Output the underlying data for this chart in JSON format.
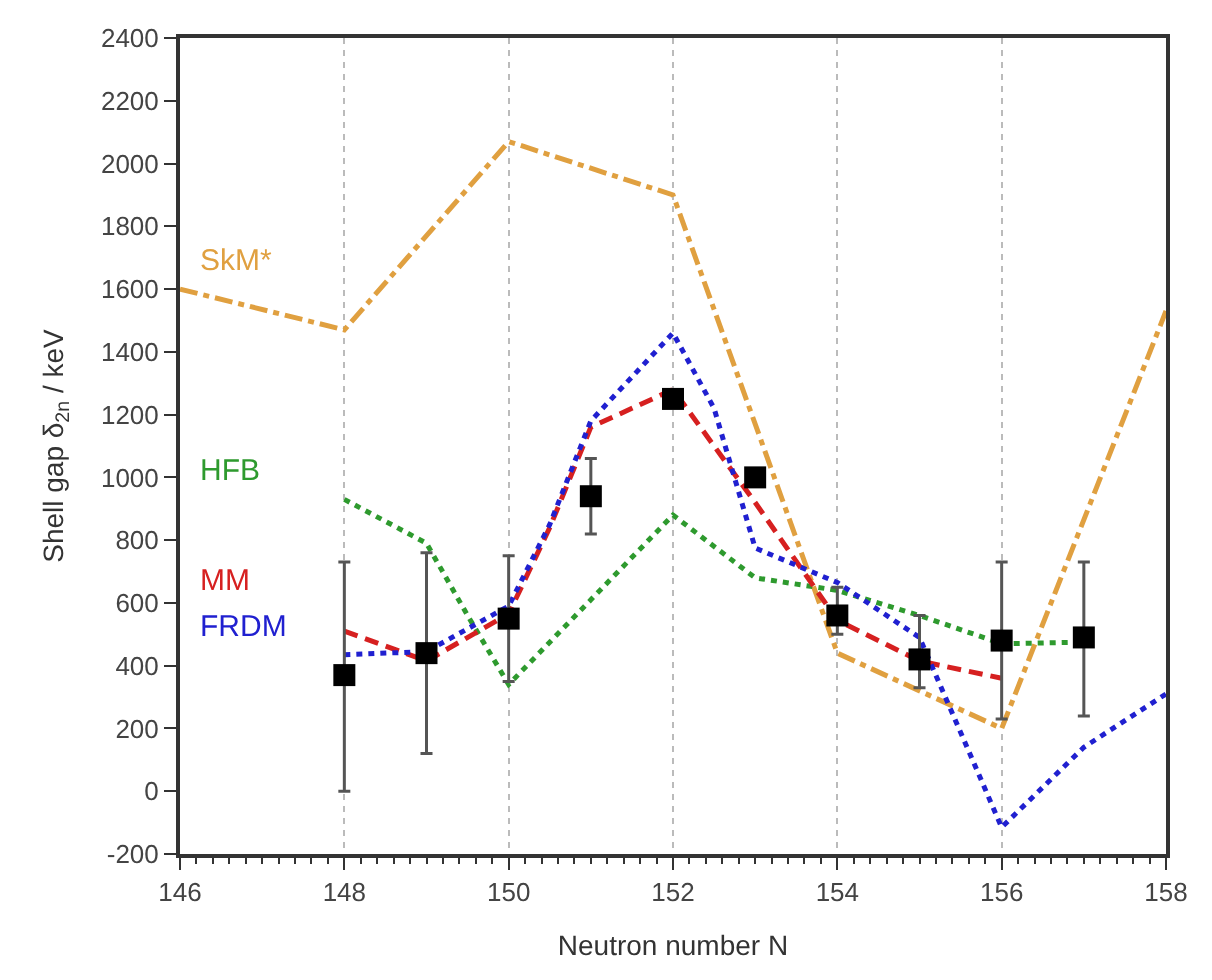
{
  "chart_data": {
    "type": "line",
    "xlabel": "Neutron number N",
    "ylabel": "Shell gap δ$_{2n}$ / keV",
    "xlim": [
      146,
      158
    ],
    "xticks": [
      146,
      148,
      150,
      152,
      154,
      156,
      158
    ],
    "ylim": [
      -200,
      2400
    ],
    "yticks": [
      -200,
      0,
      200,
      400,
      600,
      800,
      1000,
      1200,
      1400,
      1600,
      1800,
      2000,
      2200,
      2400
    ],
    "grid": "x",
    "series": [
      {
        "name": "SkM*",
        "color": "#e0a040",
        "line_style": "dashdot",
        "marker": "none",
        "x": [
          146,
          148,
          150,
          152,
          154,
          156,
          158
        ],
        "values": [
          1600,
          1470,
          2070,
          1900,
          440,
          200,
          1530
        ]
      },
      {
        "name": "HFB",
        "color": "#2e9a2e",
        "line_style": "dotted",
        "marker": "none",
        "x": [
          148,
          149,
          149.5,
          150,
          151,
          152,
          153,
          154,
          155,
          156,
          157
        ],
        "values": [
          930,
          790,
          560,
          340,
          610,
          880,
          680,
          640,
          560,
          470,
          475
        ]
      },
      {
        "name": "MM",
        "color": "#d62020",
        "line_style": "dashed",
        "marker": "none",
        "x": [
          148,
          149,
          150,
          150.5,
          151,
          152,
          153,
          154,
          155,
          156
        ],
        "values": [
          510,
          415,
          565,
          840,
          1160,
          1280,
          920,
          545,
          415,
          360
        ]
      },
      {
        "name": "FRDM",
        "color": "#2020d0",
        "line_style": "dotted",
        "marker": "none",
        "x": [
          148,
          149,
          150,
          150.5,
          151,
          152,
          152.5,
          153,
          154,
          155,
          156,
          157,
          158
        ],
        "values": [
          435,
          445,
          590,
          850,
          1180,
          1460,
          1220,
          775,
          665,
          490,
          -115,
          140,
          310
        ]
      },
      {
        "type": "scatter",
        "color": "#000000",
        "marker": "square",
        "x": [
          148,
          149,
          150,
          151,
          152,
          153,
          154,
          155,
          156,
          157
        ],
        "values": [
          370,
          440,
          550,
          940,
          1250,
          1000,
          560,
          420,
          480,
          490
        ],
        "errors": [
          [
            0,
            730
          ],
          [
            120,
            760
          ],
          [
            350,
            750
          ],
          [
            820,
            1060
          ],
          null,
          null,
          [
            500,
            650
          ],
          [
            330,
            560
          ],
          [
            230,
            730
          ],
          [
            240,
            730
          ]
        ]
      }
    ]
  }
}
